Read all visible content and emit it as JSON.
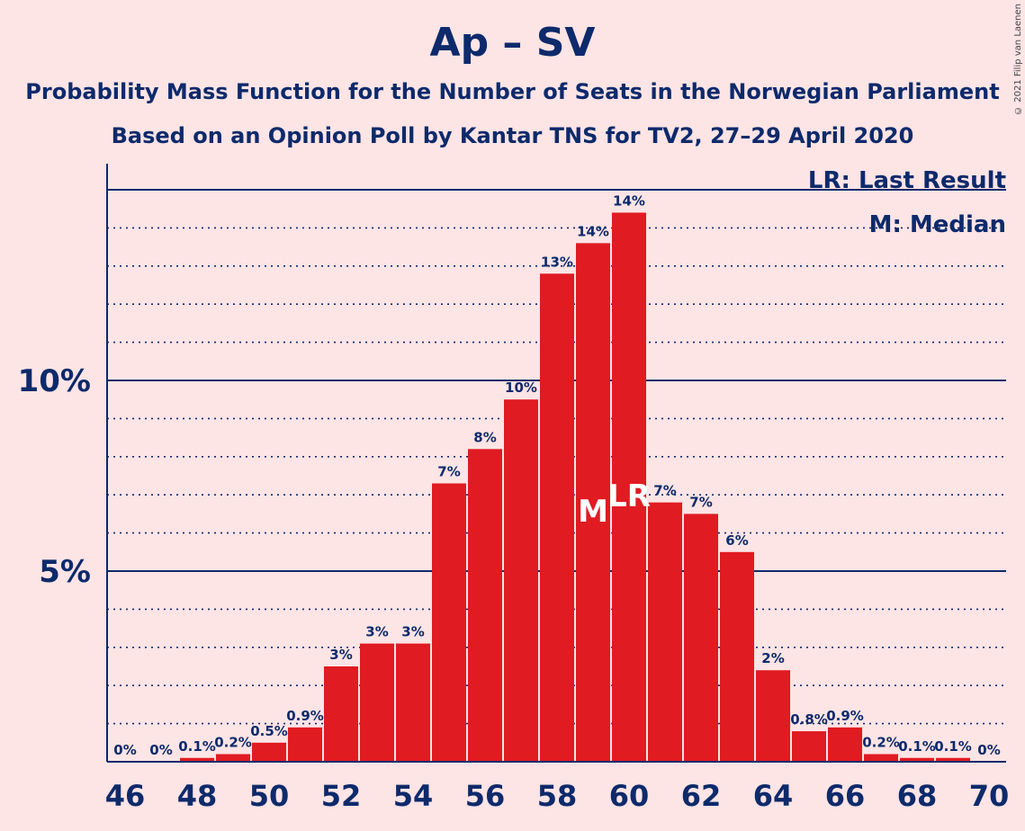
{
  "title": "Ap – SV",
  "subtitle_line1": "Probability Mass Function for the Number of Seats in the Norwegian Parliament",
  "subtitle_line2": "Based on an Opinion Poll by Kantar TNS for TV2, 27–29 April 2020",
  "copyright": "© 2021 Filip van Laenen",
  "legend": {
    "last_result": "LR: Last Result",
    "median": "M: Median"
  },
  "colors": {
    "background": "#fde4e5",
    "bar": "#e01b22",
    "text": "#0d2a6b"
  },
  "chart_data": {
    "type": "bar",
    "categories": [
      46,
      47,
      48,
      49,
      50,
      51,
      52,
      53,
      54,
      55,
      56,
      57,
      58,
      59,
      60,
      61,
      62,
      63,
      64,
      65,
      66,
      67,
      68,
      69,
      70
    ],
    "values": [
      0,
      0,
      0.1,
      0.2,
      0.5,
      0.9,
      2.5,
      3.1,
      3.1,
      7.3,
      8.2,
      9.5,
      12.8,
      13.6,
      14.4,
      6.8,
      6.5,
      5.5,
      2.4,
      0.8,
      0.9,
      0.2,
      0.1,
      0.1,
      0
    ],
    "data_labels": [
      "0%",
      "0%",
      "0.1%",
      "0.2%",
      "0.5%",
      "0.9%",
      "3%",
      "3%",
      "3%",
      "7%",
      "8%",
      "10%",
      "13%",
      "14%",
      "14%",
      "7%",
      "7%",
      "6%",
      "2%",
      "0.8%",
      "0.9%",
      "0.2%",
      "0.1%",
      "0.1%",
      "0%"
    ],
    "x_tick_labels": [
      "46",
      "48",
      "50",
      "52",
      "54",
      "56",
      "58",
      "60",
      "62",
      "64",
      "66",
      "68",
      "70"
    ],
    "y_tick_labels": [
      {
        "value": 5,
        "label": "5%"
      },
      {
        "value": 10,
        "label": "10%"
      }
    ],
    "ylim": [
      0,
      15.6
    ],
    "median_seat": 59,
    "median_label": "M",
    "last_result_seat": 60,
    "last_result_label": "LR",
    "grid": true
  }
}
